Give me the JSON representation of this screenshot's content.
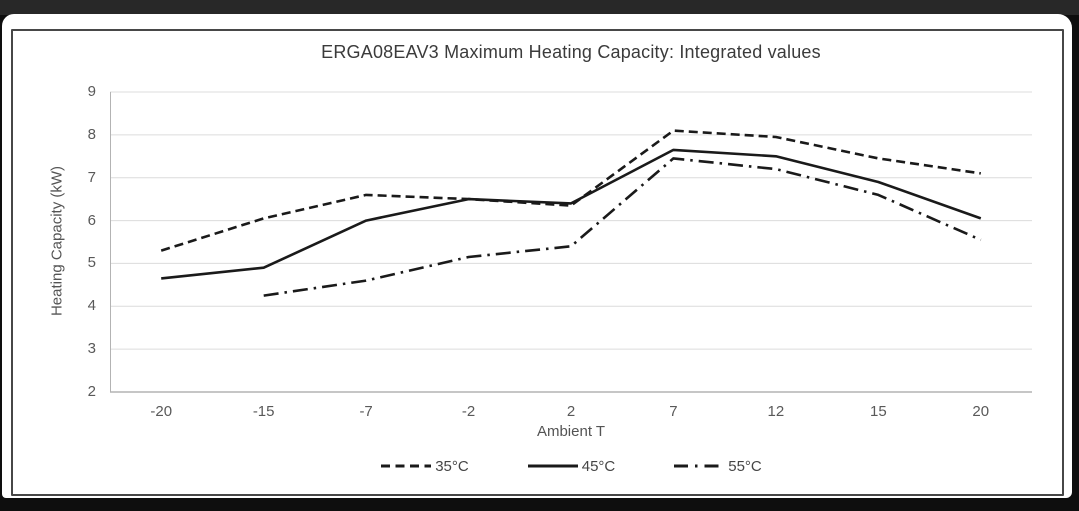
{
  "window": {
    "background": "#0e0e0e",
    "top_bar_color": "#282828",
    "panel_background": "#ffffff",
    "frame_border_color": "#474747"
  },
  "chart_data": {
    "type": "line",
    "title": "ERGA08EAV3 Maximum Heating Capacity: Integrated values",
    "xlabel": "Ambient T",
    "ylabel": "Heating Capacity (kW)",
    "categories": [
      "-20",
      "-15",
      "-7",
      "-2",
      "2",
      "7",
      "12",
      "15",
      "20"
    ],
    "yticks": [
      9,
      8,
      7,
      6,
      5,
      4,
      3,
      2
    ],
    "ylim": [
      2,
      9
    ],
    "grid": "horizontal",
    "legend_position": "bottom",
    "line_color": "#1a1a1a",
    "gridline_color": "#dcdcdc",
    "axis_line_color": "#b3b3b3",
    "series": [
      {
        "name": "35°C",
        "style": "dashed",
        "values": [
          5.3,
          6.05,
          6.6,
          6.5,
          6.35,
          8.1,
          7.95,
          7.45,
          7.1
        ]
      },
      {
        "name": "45°C",
        "style": "solid",
        "values": [
          4.65,
          4.9,
          6.0,
          6.5,
          6.4,
          7.65,
          7.5,
          6.9,
          6.05
        ]
      },
      {
        "name": "55°C",
        "style": "dash-dot",
        "values": [
          null,
          4.25,
          4.6,
          5.15,
          5.4,
          7.45,
          7.2,
          6.6,
          5.55
        ]
      }
    ]
  }
}
